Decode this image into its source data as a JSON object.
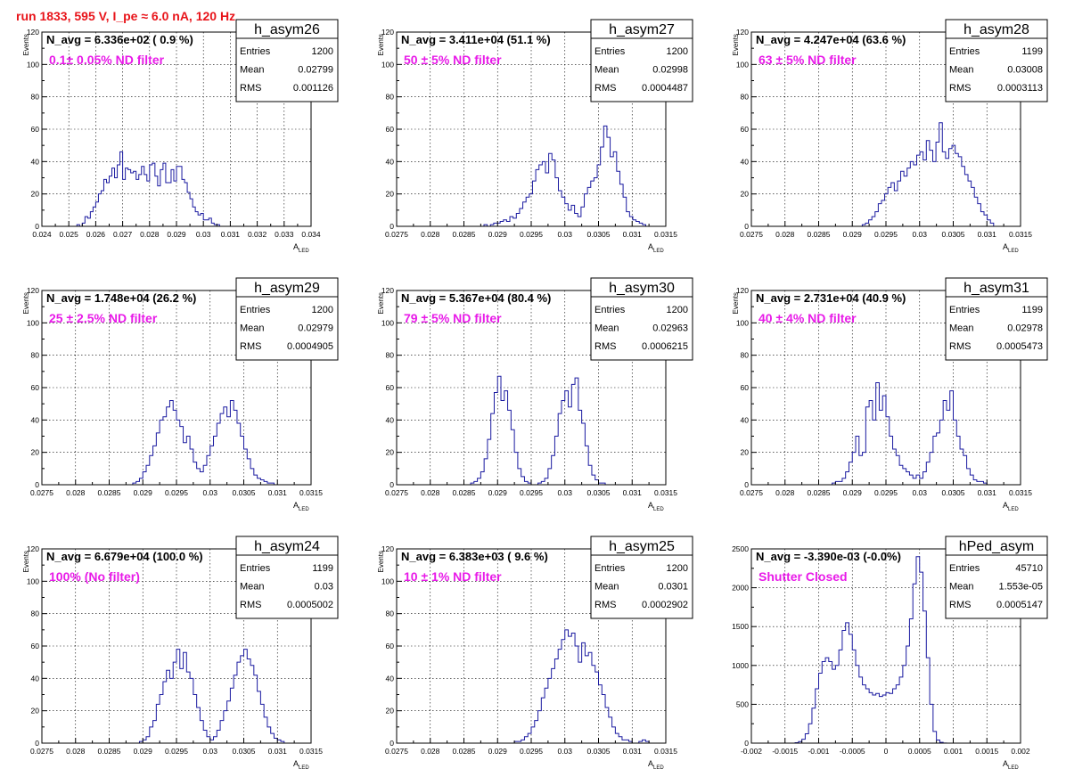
{
  "page_title": "run 1833,   595 V, I_pe ≈ 6.0 nA, 120 Hz",
  "colors": {
    "title": "#e8141a",
    "annotation": "#e81ae8",
    "histogram": "#1a1aa0",
    "axis": "#000000",
    "grid": "#000000"
  },
  "stats_labels": {
    "entries": "Entries",
    "mean": "Mean",
    "rms": "RMS"
  },
  "chart_data": [
    {
      "type": "histogram",
      "name": "h_asym26",
      "navg": "N_avg = 6.336e+02 ( 0.9 %)",
      "annotation": "0.1± 0.05% ND filter",
      "entries": "1200",
      "mean": "0.02799",
      "rms": "0.001126",
      "xlabel": "A",
      "xlabel_sub": "LED",
      "ylabel": "Events",
      "xlim": [
        0.024,
        0.034
      ],
      "ylim": [
        0,
        120
      ],
      "xticks": [
        "0.024",
        "0.025",
        "0.026",
        "0.027",
        "0.028",
        "0.029",
        "0.03",
        "0.031",
        "0.032",
        "0.033",
        "0.034"
      ],
      "yticks": [
        "0",
        "20",
        "40",
        "60",
        "80",
        "100",
        "120"
      ],
      "bins_range": [
        0.025,
        0.0312
      ],
      "counts": [
        0,
        0,
        0,
        1,
        0,
        2,
        6,
        5,
        9,
        12,
        15,
        20,
        22,
        29,
        27,
        31,
        36,
        30,
        38,
        46,
        29,
        36,
        35,
        33,
        34,
        29,
        32,
        37,
        32,
        28,
        38,
        39,
        31,
        25,
        35,
        39,
        27,
        27,
        35,
        28,
        37,
        37,
        29,
        27,
        21,
        17,
        12,
        9,
        7,
        8,
        4,
        4,
        5,
        2,
        1,
        1,
        0,
        0,
        0,
        0,
        0,
        0
      ]
    },
    {
      "type": "histogram",
      "name": "h_asym27",
      "navg": "N_avg = 3.411e+04 (51.1 %)",
      "annotation": "50 ± 5% ND filter",
      "entries": "1200",
      "mean": "0.02998",
      "rms": "0.0004487",
      "xlabel": "A",
      "xlabel_sub": "LED",
      "ylabel": "Events",
      "xlim": [
        0.0275,
        0.0315
      ],
      "ylim": [
        0,
        120
      ],
      "xticks": [
        "0.0275",
        "0.028",
        "0.0285",
        "0.029",
        "0.0295",
        "0.03",
        "0.0305",
        "0.031",
        "0.0315"
      ],
      "yticks": [
        "0",
        "20",
        "40",
        "60",
        "80",
        "100",
        "120"
      ],
      "bins_range": [
        0.02875,
        0.03125
      ],
      "counts": [
        0,
        1,
        0,
        1,
        2,
        2,
        3,
        4,
        3,
        6,
        5,
        8,
        11,
        15,
        18,
        20,
        28,
        35,
        38,
        40,
        33,
        45,
        41,
        30,
        22,
        18,
        14,
        10,
        13,
        8,
        6,
        12,
        20,
        24,
        28,
        30,
        38,
        49,
        62,
        55,
        43,
        46,
        34,
        26,
        18,
        9,
        6,
        4,
        3,
        2,
        1,
        0
      ]
    },
    {
      "type": "histogram",
      "name": "h_asym28",
      "navg": "N_avg = 4.247e+04 (63.6 %)",
      "annotation": "63 ± 5% ND filter",
      "entries": "1199",
      "mean": "0.03008",
      "rms": "0.0003113",
      "xlabel": "A",
      "xlabel_sub": "LED",
      "ylabel": "Events",
      "xlim": [
        0.0275,
        0.0315
      ],
      "ylim": [
        0,
        120
      ],
      "xticks": [
        "0.0275",
        "0.028",
        "0.0285",
        "0.029",
        "0.0295",
        "0.03",
        "0.0305",
        "0.031",
        "0.0315"
      ],
      "yticks": [
        "0",
        "20",
        "40",
        "60",
        "80",
        "100",
        "120"
      ],
      "bins_range": [
        0.0291,
        0.0311
      ],
      "counts": [
        0,
        1,
        2,
        4,
        6,
        9,
        14,
        16,
        20,
        24,
        27,
        22,
        28,
        34,
        31,
        36,
        40,
        38,
        44,
        46,
        41,
        53,
        47,
        40,
        52,
        64,
        46,
        42,
        48,
        50,
        45,
        43,
        37,
        32,
        28,
        24,
        18,
        14,
        9,
        7,
        4,
        2
      ]
    },
    {
      "type": "histogram",
      "name": "h_asym29",
      "navg": "N_avg = 1.748e+04 (26.2 %)",
      "annotation": "25 ± 2.5% ND filter",
      "entries": "1200",
      "mean": "0.02979",
      "rms": "0.0004905",
      "xlabel": "A",
      "xlabel_sub": "LED",
      "ylabel": "Events",
      "xlim": [
        0.0275,
        0.0315
      ],
      "ylim": [
        0,
        120
      ],
      "xticks": [
        "0.0275",
        "0.028",
        "0.0285",
        "0.029",
        "0.0295",
        "0.03",
        "0.0305",
        "0.031",
        "0.0315"
      ],
      "yticks": [
        "0",
        "20",
        "40",
        "60",
        "80",
        "100",
        "120"
      ],
      "bins_range": [
        0.0288,
        0.0311
      ],
      "counts": [
        0,
        1,
        2,
        4,
        8,
        12,
        18,
        24,
        32,
        40,
        42,
        48,
        52,
        46,
        40,
        36,
        26,
        30,
        22,
        14,
        10,
        8,
        12,
        18,
        24,
        30,
        38,
        44,
        48,
        42,
        52,
        46,
        38,
        30,
        22,
        16,
        10,
        6,
        4,
        3,
        2,
        1,
        1,
        0,
        0,
        0
      ]
    },
    {
      "type": "histogram",
      "name": "h_asym30",
      "navg": "N_avg = 5.367e+04 (80.4 %)",
      "annotation": "79 ± 5% ND filter",
      "entries": "1200",
      "mean": "0.02963",
      "rms": "0.0006215",
      "xlabel": "A",
      "xlabel_sub": "LED",
      "ylabel": "Events",
      "xlim": [
        0.0275,
        0.0315
      ],
      "ylim": [
        0,
        120
      ],
      "xticks": [
        "0.0275",
        "0.028",
        "0.0285",
        "0.029",
        "0.0295",
        "0.03",
        "0.0305",
        "0.031",
        "0.0315"
      ],
      "yticks": [
        "0",
        "20",
        "40",
        "60",
        "80",
        "100",
        "120"
      ],
      "bins_range": [
        0.02855,
        0.03085
      ],
      "counts": [
        0,
        1,
        2,
        4,
        8,
        16,
        28,
        44,
        57,
        67,
        52,
        58,
        46,
        34,
        20,
        10,
        5,
        2,
        1,
        0,
        0,
        1,
        2,
        4,
        10,
        18,
        30,
        44,
        52,
        58,
        48,
        62,
        66,
        46,
        38,
        24,
        12,
        6,
        3,
        1,
        1,
        0,
        0,
        0,
        0,
        0
      ]
    },
    {
      "type": "histogram",
      "name": "h_asym31",
      "navg": "N_avg = 2.731e+04 (40.9 %)",
      "annotation": "40 ± 4% ND filter",
      "entries": "1199",
      "mean": "0.02978",
      "rms": "0.0005473",
      "xlabel": "A",
      "xlabel_sub": "LED",
      "ylabel": "Events",
      "xlim": [
        0.0275,
        0.0315
      ],
      "ylim": [
        0,
        120
      ],
      "xticks": [
        "0.0275",
        "0.028",
        "0.0285",
        "0.029",
        "0.0295",
        "0.03",
        "0.0305",
        "0.031",
        "0.0315"
      ],
      "yticks": [
        "0",
        "20",
        "40",
        "60",
        "80",
        "100",
        "120"
      ],
      "bins_range": [
        0.02865,
        0.0311
      ],
      "counts": [
        0,
        1,
        2,
        2,
        4,
        8,
        14,
        20,
        30,
        18,
        20,
        48,
        52,
        40,
        63,
        46,
        55,
        42,
        30,
        22,
        18,
        12,
        10,
        8,
        6,
        4,
        6,
        4,
        8,
        14,
        20,
        30,
        32,
        40,
        52,
        46,
        58,
        40,
        30,
        22,
        18,
        10,
        6,
        3,
        2,
        2,
        1,
        0,
        0
      ]
    },
    {
      "type": "histogram",
      "name": "h_asym24",
      "navg": "N_avg = 6.679e+04 (100.0 %)",
      "annotation": "100% (No filter)",
      "entries": "1199",
      "mean": "0.03",
      "rms": "0.0005002",
      "xlabel": "A",
      "xlabel_sub": "LED",
      "ylabel": "Events",
      "xlim": [
        0.0275,
        0.0315
      ],
      "ylim": [
        0,
        120
      ],
      "xticks": [
        "0.0275",
        "0.028",
        "0.0285",
        "0.029",
        "0.0295",
        "0.03",
        "0.0305",
        "0.031",
        "0.0315"
      ],
      "yticks": [
        "0",
        "20",
        "40",
        "60",
        "80",
        "100",
        "120"
      ],
      "bins_range": [
        0.0289,
        0.03115
      ],
      "counts": [
        0,
        1,
        2,
        4,
        10,
        14,
        24,
        30,
        38,
        45,
        40,
        50,
        58,
        46,
        56,
        44,
        40,
        30,
        22,
        14,
        8,
        4,
        2,
        4,
        8,
        14,
        20,
        26,
        34,
        42,
        50,
        54,
        58,
        52,
        48,
        42,
        32,
        24,
        16,
        10,
        6,
        3,
        2,
        1,
        0
      ]
    },
    {
      "type": "histogram",
      "name": "h_asym25",
      "navg": "N_avg = 6.383e+03 ( 9.6 %)",
      "annotation": "10 ± 1% ND filter",
      "entries": "1200",
      "mean": "0.0301",
      "rms": "0.0002902",
      "xlabel": "A",
      "xlabel_sub": "LED",
      "ylabel": "Events",
      "xlim": [
        0.0275,
        0.0315
      ],
      "ylim": [
        0,
        120
      ],
      "xticks": [
        "0.0275",
        "0.028",
        "0.0285",
        "0.029",
        "0.0295",
        "0.03",
        "0.0305",
        "0.031",
        "0.0315"
      ],
      "yticks": [
        "0",
        "20",
        "40",
        "60",
        "80",
        "100",
        "120"
      ],
      "bins_range": [
        0.0292,
        0.0313
      ],
      "counts": [
        0,
        1,
        1,
        2,
        4,
        6,
        10,
        14,
        20,
        28,
        34,
        40,
        46,
        52,
        58,
        64,
        70,
        66,
        68,
        60,
        50,
        62,
        54,
        56,
        48,
        44,
        36,
        30,
        22,
        16,
        10,
        6,
        4,
        2,
        2,
        1,
        0,
        0,
        1,
        2,
        1,
        0
      ]
    },
    {
      "type": "histogram",
      "name": "hPed_asym",
      "navg": "N_avg = -3.390e-03 (-0.0%)",
      "annotation": "Shutter Closed",
      "entries": "45710",
      "mean": "1.553e-05",
      "rms": "0.0005147",
      "xlabel": "A",
      "xlabel_sub": "LED",
      "ylabel": "",
      "xlim": [
        -0.002,
        0.002
      ],
      "ylim": [
        0,
        2500
      ],
      "xticks": [
        "-0.002",
        "-0.0015",
        "-0.001",
        "-0.0005",
        "0",
        "0.0005",
        "0.001",
        "0.0015",
        "0.002"
      ],
      "yticks": [
        "0",
        "500",
        "1000",
        "1500",
        "2000",
        "2500"
      ],
      "bins_range": [
        -0.0014,
        0.0012
      ],
      "counts": [
        0,
        5,
        20,
        50,
        120,
        250,
        450,
        700,
        900,
        1050,
        1100,
        1050,
        950,
        1000,
        1200,
        1450,
        1550,
        1400,
        1200,
        1000,
        850,
        750,
        700,
        650,
        620,
        640,
        600,
        620,
        650,
        640,
        700,
        750,
        850,
        1000,
        1250,
        1600,
        2050,
        2400,
        2200,
        1700,
        1100,
        500,
        150,
        40,
        10,
        2,
        0,
        0,
        0,
        0,
        0,
        0
      ]
    }
  ]
}
